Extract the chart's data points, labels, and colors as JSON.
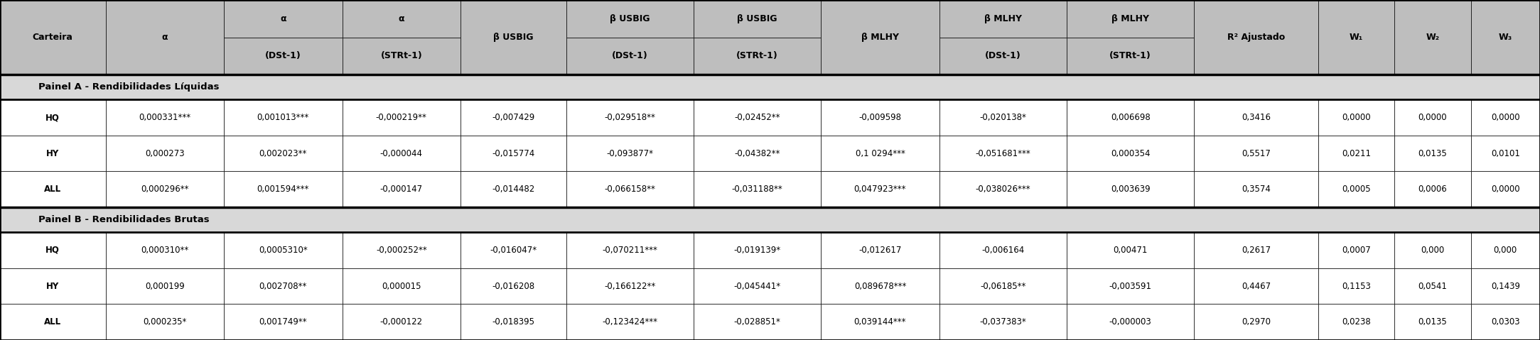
{
  "header_row1": [
    "Carteira",
    "α",
    "α\n(DSt-1)",
    "α\n(STRt-1)",
    "β USBIG",
    "β USBIG\n(DSt-1)",
    "β USBIG\n(STRt-1)",
    "β MLHY",
    "β MLHY\n(DSt-1)",
    "β MLHY\n(STRt-1)",
    "R² Ajustado",
    "W₁",
    "W₂",
    "W₃"
  ],
  "panel_a_label": "Painel A - Rendibilidades Líquidas",
  "panel_b_label": "Painel B - Rendibilidades Brutas",
  "panel_a_rows": [
    [
      "HQ",
      "0,000331***",
      "0,001013***",
      "-0,000219**",
      "-0,007429",
      "-0,029518**",
      "-0,02452**",
      "-0,009598",
      "-0,020138*",
      "0,006698",
      "0,3416",
      "0,0000",
      "0,0000",
      "0,0000"
    ],
    [
      "HY",
      "0,000273",
      "0,002023**",
      "-0,000044",
      "-0,015774",
      "-0,093877*",
      "-0,04382**",
      "0,1 0294***",
      "-0,051681***",
      "0,000354",
      "0,5517",
      "0,0211",
      "0,0135",
      "0,0101"
    ],
    [
      "ALL",
      "0,000296**",
      "0,001594***",
      "-0,000147",
      "-0,014482",
      "-0,066158**",
      "-0,031188**",
      "0,047923***",
      "-0,038026***",
      "0,003639",
      "0,3574",
      "0,0005",
      "0,0006",
      "0,0000"
    ]
  ],
  "panel_b_rows": [
    [
      "HQ",
      "0,000310**",
      "0,0005310*",
      "-0,000252**",
      "-0,016047*",
      "-0,070211***",
      "-0,019139*",
      "-0,012617",
      "-0,006164",
      "0,00471",
      "0,2617",
      "0,0007",
      "0,000",
      "0,000"
    ],
    [
      "HY",
      "0,000199",
      "0,002708**",
      "0,000015",
      "-0,016208",
      "-0,166122**",
      "-0,045441*",
      "0,089678***",
      "-0,06185**",
      "-0,003591",
      "0,4467",
      "0,1153",
      "0,0541",
      "0,1439"
    ],
    [
      "ALL",
      "0,000235*",
      "0,001749**",
      "-0,000122",
      "-0,018395",
      "-0,123424***",
      "-0,028851*",
      "0,039144***",
      "-0,037383*",
      "-0,000003",
      "0,2970",
      "0,0238",
      "0,0135",
      "0,0303"
    ]
  ],
  "header_bg": "#BEBEBE",
  "panel_bg": "#D8D8D8",
  "row_bg": "#FFFFFF",
  "col_widths": [
    5.8,
    6.5,
    6.5,
    6.5,
    5.8,
    7.0,
    7.0,
    6.5,
    7.0,
    7.0,
    6.8,
    4.2,
    4.2,
    3.8
  ]
}
